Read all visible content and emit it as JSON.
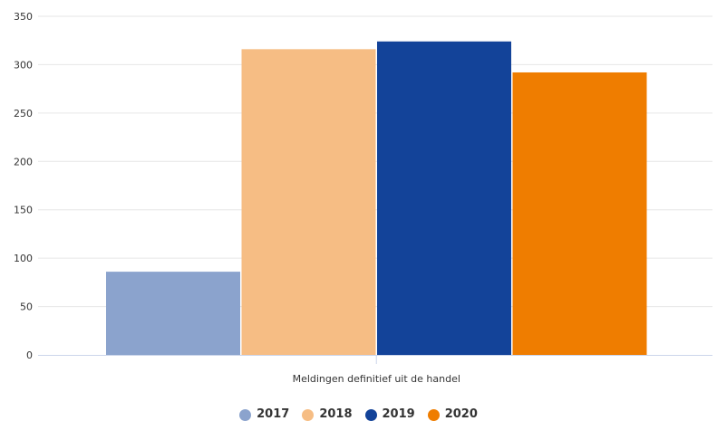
{
  "chart_data": {
    "type": "bar",
    "categories": [
      "Meldingen definitief uit de handel"
    ],
    "series": [
      {
        "name": "2017",
        "values": [
          86
        ],
        "color": "#8ba3cd"
      },
      {
        "name": "2018",
        "values": [
          316
        ],
        "color": "#f6bd84"
      },
      {
        "name": "2019",
        "values": [
          324
        ],
        "color": "#134399"
      },
      {
        "name": "2020",
        "values": [
          292
        ],
        "color": "#ef7d00"
      }
    ],
    "yticks": [
      "0",
      "50",
      "100",
      "150",
      "200",
      "250",
      "300",
      "350"
    ],
    "ylim": [
      0,
      350
    ],
    "grid": true,
    "legend_position": "bottom-center"
  }
}
